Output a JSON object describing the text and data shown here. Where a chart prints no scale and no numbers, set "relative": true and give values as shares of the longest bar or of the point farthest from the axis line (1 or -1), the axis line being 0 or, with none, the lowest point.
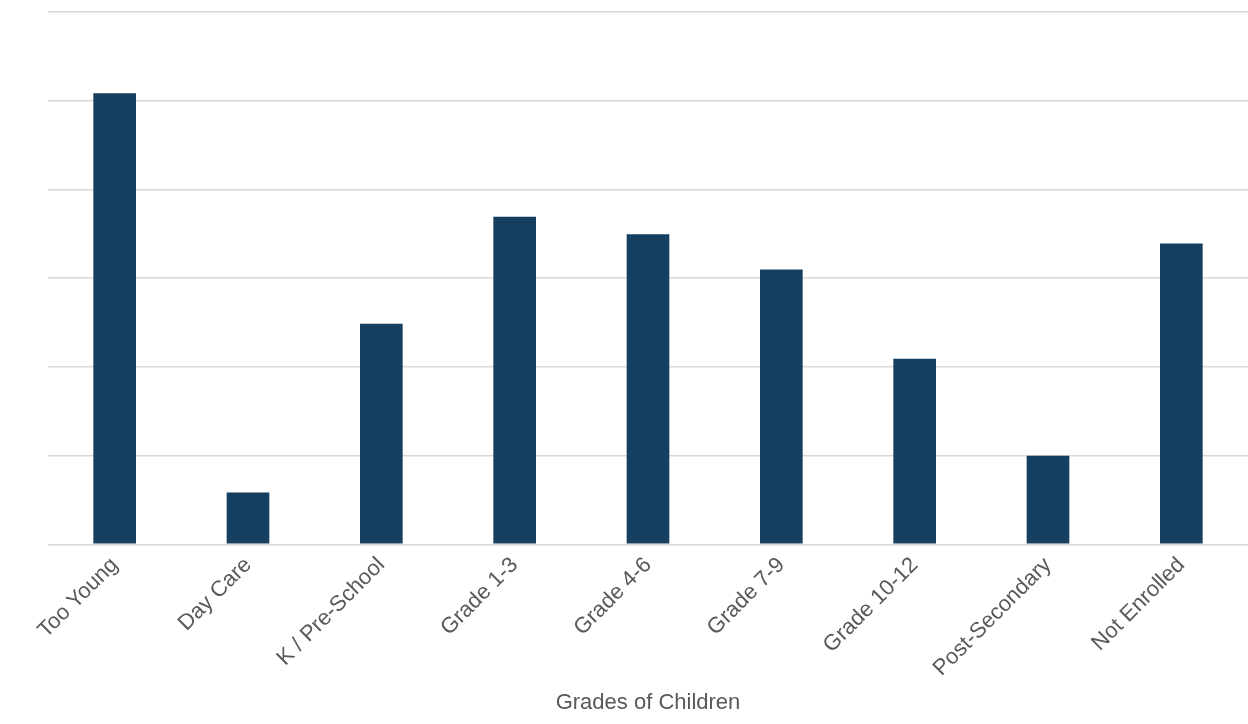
{
  "chart_data": {
    "type": "bar",
    "relative": true,
    "xlabel": "Grades of Children",
    "categories": [
      "Too Young",
      "Day Care",
      "K / Pre-School",
      "Grade 1-3",
      "Grade 4-6",
      "Grade 7-9",
      "Grade 10-12",
      "Post-Secondary",
      "Not Enrolled"
    ],
    "values": [
      1,
      0.115,
      0.489,
      0.726,
      0.687,
      0.609,
      0.411,
      0.196,
      0.667
    ],
    "color": "#153f60",
    "grid": "y",
    "legend": false
  }
}
